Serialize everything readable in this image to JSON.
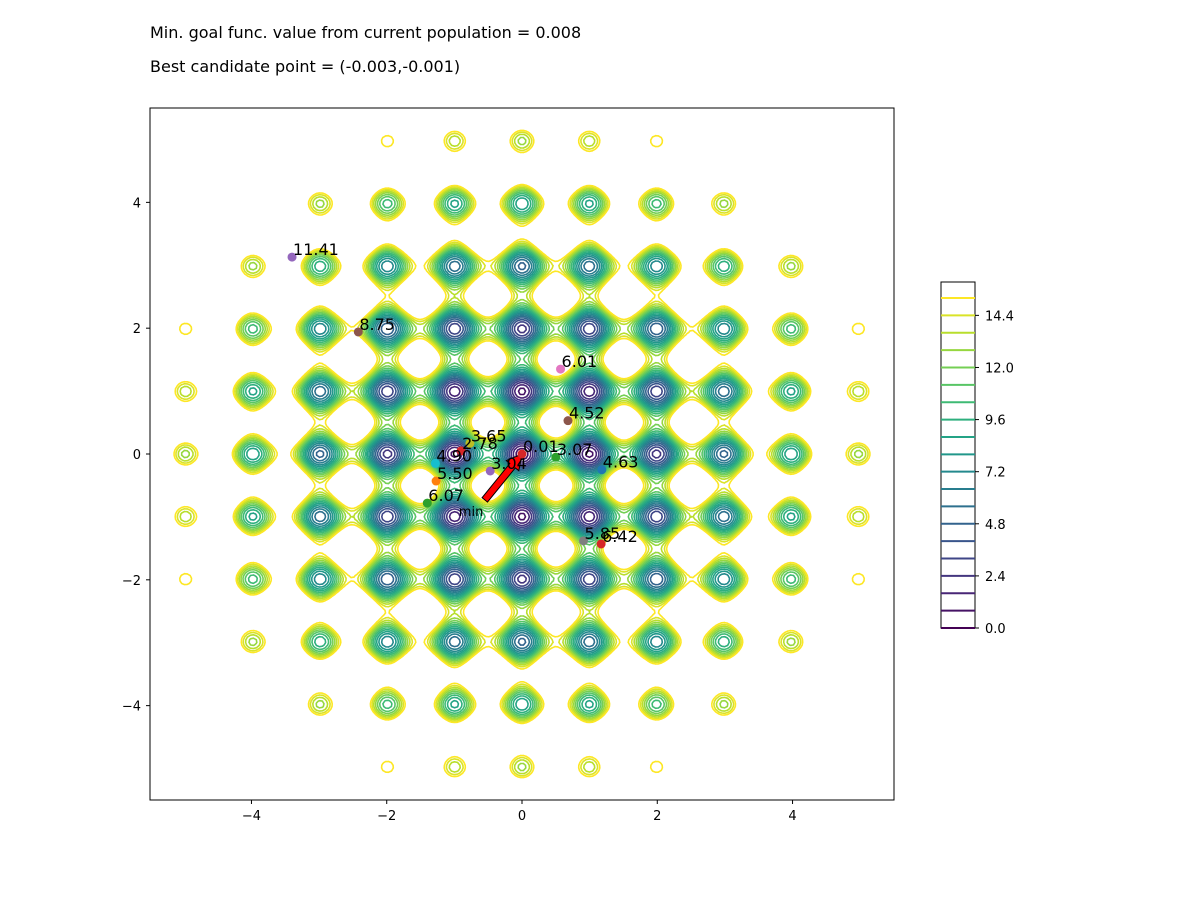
{
  "header": {
    "line1": "Min. goal func. value from current population = 0.008",
    "line2": "Best candidate point = (-0.003,-0.001)"
  },
  "chart_data": {
    "type": "contour",
    "function": "Rastrigin-like multimodal goal function (global minimum at origin)",
    "xlim": [
      -5.5,
      5.5
    ],
    "ylim": [
      -5.5,
      5.5
    ],
    "xticks": [
      -4,
      -2,
      0,
      2,
      4
    ],
    "yticks": [
      -4,
      -2,
      0,
      2,
      4
    ],
    "tick_labels": {
      "x": [
        "−4",
        "−2",
        "0",
        "2",
        "4"
      ],
      "y": [
        "−4",
        "−2",
        "0",
        "2",
        "4"
      ]
    },
    "grid": false,
    "contour_levels": [
      0.0,
      0.8,
      1.6,
      2.4,
      3.2,
      4.0,
      4.8,
      5.6,
      6.4,
      7.2,
      8.0,
      8.8,
      9.6,
      10.4,
      11.2,
      12.0,
      12.8,
      13.6,
      14.4,
      15.2
    ],
    "colorbar": {
      "ticks": [
        0.0,
        2.4,
        4.8,
        7.2,
        9.6,
        12.0,
        14.4
      ],
      "tick_labels": [
        "0.0",
        "2.4",
        "4.8",
        "7.2",
        "9.6",
        "12.0",
        "14.4"
      ]
    },
    "points": [
      {
        "x": -3.4,
        "y": 3.13,
        "label": "11.41",
        "color": "#9467bd"
      },
      {
        "x": -2.42,
        "y": 1.94,
        "label": "8.75",
        "color": "#8c564b"
      },
      {
        "x": 0.57,
        "y": 1.35,
        "label": "6.01",
        "color": "#e377c2"
      },
      {
        "x": 0.68,
        "y": 0.53,
        "label": "4.52",
        "color": "#8c564b"
      },
      {
        "x": -0.77,
        "y": 0.17,
        "label": "3.65",
        "color": "#bcbd22"
      },
      {
        "x": -0.9,
        "y": 0.05,
        "label": "2.78",
        "color": "#d62728"
      },
      {
        "x": -1.28,
        "y": -0.15,
        "label": "4.90",
        "color": "#17becf"
      },
      {
        "x": -0.47,
        "y": -0.27,
        "label": "3.04",
        "color": "#9467bd"
      },
      {
        "x": -1.27,
        "y": -0.43,
        "label": "5.50",
        "color": "#ff7f0e"
      },
      {
        "x": -1.4,
        "y": -0.78,
        "label": "6.07",
        "color": "#2ca02c"
      },
      {
        "x": 0.0,
        "y": 0.0,
        "label": "0.01",
        "color": "#d62728"
      },
      {
        "x": 0.5,
        "y": -0.05,
        "label": "3.07",
        "color": "#2ca02c"
      },
      {
        "x": 1.18,
        "y": -0.25,
        "label": "4.63",
        "color": "#1f77b4"
      },
      {
        "x": 0.91,
        "y": -1.38,
        "label": "5.85",
        "color": "#7f7f7f"
      },
      {
        "x": 1.17,
        "y": -1.43,
        "label": "6.42",
        "color": "#d62728"
      }
    ],
    "annotation": {
      "text": "min",
      "x": -0.55,
      "y": -0.73,
      "arrow_to_x": 0.0,
      "arrow_to_y": 0.0,
      "arrow_color": "#ff0000"
    }
  }
}
